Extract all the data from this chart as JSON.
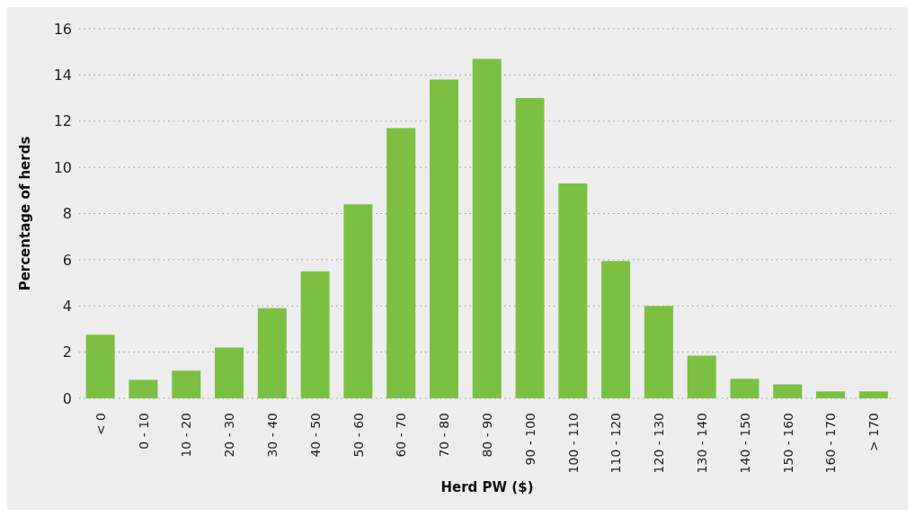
{
  "chart_data": {
    "type": "bar",
    "xlabel": "Herd PW ($)",
    "ylabel": "Percentage of herds",
    "categories": [
      "< 0",
      "0 - 10",
      "10 - 20",
      "20 - 30",
      "30 - 40",
      "40 - 50",
      "50 - 60",
      "60 - 70",
      "70 - 80",
      "80 - 90",
      "90 - 100",
      "100 - 110",
      "110 - 120",
      "120 - 130",
      "130 - 140",
      "140 - 150",
      "150 - 160",
      "160 - 170",
      "> 170"
    ],
    "values": [
      2.75,
      0.8,
      1.2,
      2.2,
      3.9,
      5.5,
      8.4,
      11.7,
      13.8,
      14.7,
      13.0,
      9.3,
      5.95,
      4.0,
      1.85,
      0.85,
      0.6,
      0.3,
      0.3
    ],
    "color": "#7bc043",
    "ylim": [
      0,
      16
    ],
    "yticks": [
      0,
      2,
      4,
      6,
      8,
      10,
      12,
      14,
      16
    ],
    "grid": "y"
  }
}
